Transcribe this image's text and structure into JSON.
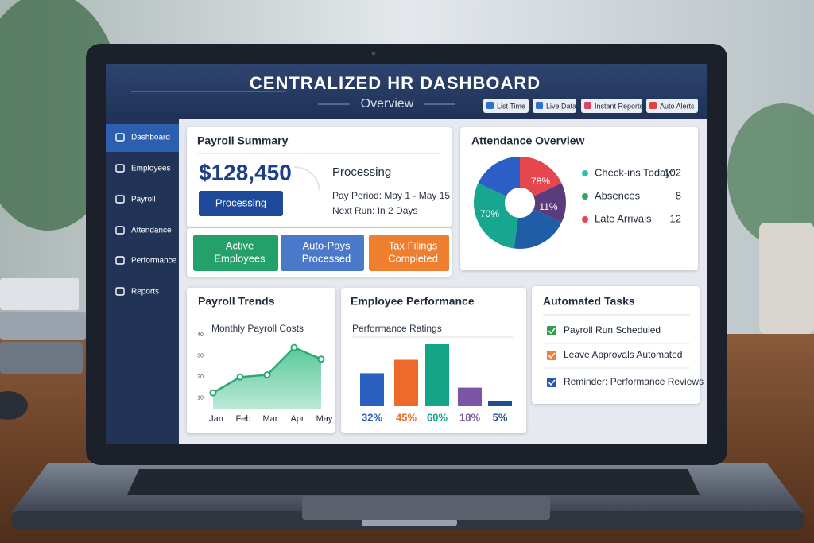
{
  "header": {
    "title": "CENTRALIZED HR DASHBOARD",
    "subtitle": "Overview",
    "badges": [
      {
        "label": "List Time",
        "color": "#2f6fd0"
      },
      {
        "label": "Live Data",
        "color": "#2f6fd0"
      },
      {
        "label": "Instant Reports",
        "color": "#d9486a"
      },
      {
        "label": "Auto Alerts",
        "color": "#e0443a"
      }
    ]
  },
  "sidebar": {
    "items": [
      "Dashboard",
      "Employees",
      "Payroll",
      "Attendance",
      "Performance",
      "Reports"
    ]
  },
  "payroll_summary": {
    "title": "Payroll Summary",
    "amount": "$128,450",
    "button": "Processing",
    "status": "Processing",
    "pay_period": "Pay Period: May 1 - May 15",
    "next_run": "Next Run: In 2 Days"
  },
  "tiles": [
    {
      "lines": [
        "Active",
        "Employees"
      ],
      "color": "#24a06b"
    },
    {
      "lines": [
        "Auto-Pays",
        "Processed"
      ],
      "color": "#4b79c9"
    },
    {
      "lines": [
        "Tax Filings",
        "Completed"
      ],
      "color": "#ef7e2f"
    }
  ],
  "attendance": {
    "title": "Attendance Overview",
    "pie": {
      "type": "pie",
      "values": [
        18,
        14,
        20,
        30,
        18
      ],
      "colors": [
        "#e5474c",
        "#5c3b7c",
        "#1f5ea6",
        "#17a68f",
        "#2b5fc6"
      ]
    },
    "annotations": [
      "78%",
      "11%",
      "70%"
    ],
    "legend": [
      {
        "label": "Check-ins Today:",
        "value": 102,
        "color": "#2cc0a6"
      },
      {
        "label": "Absences",
        "value": 8,
        "color": "#2aa863"
      },
      {
        "label": "Late Arrivals",
        "value": 12,
        "color": "#e5474c"
      }
    ]
  },
  "trends": {
    "title": "Payroll Trends",
    "chart": {
      "type": "area",
      "subtitle": "Monthly Payroll Costs",
      "categories": [
        "Jan",
        "Feb",
        "Mar",
        "Apr",
        "May"
      ],
      "values": [
        12.5,
        20,
        21,
        34,
        28.5
      ],
      "ylim": [
        5,
        45
      ],
      "yticks": [
        10,
        20,
        30,
        40
      ],
      "color": "#2aa874"
    }
  },
  "performance": {
    "title": "Employee Performance",
    "chart": {
      "type": "bar",
      "subtitle": "Performance Ratings",
      "values": [
        32,
        45,
        60,
        18,
        5
      ],
      "value_labels": [
        "32%",
        "45%",
        "60%",
        "18%",
        "5%"
      ],
      "colors": [
        "#2a5fc0",
        "#ef6a2a",
        "#14a487",
        "#7d55a6",
        "#1e4f8f"
      ],
      "ylim": [
        0,
        70
      ]
    }
  },
  "tasks": {
    "title": "Automated Tasks",
    "items": [
      {
        "label": "Payroll Run Scheduled",
        "color": "#2e9e4f"
      },
      {
        "label": "Leave Approvals Automated",
        "color": "#ef7e2f"
      },
      {
        "label": "Reminder: Performance Reviews",
        "color": "#2559b5"
      }
    ]
  }
}
